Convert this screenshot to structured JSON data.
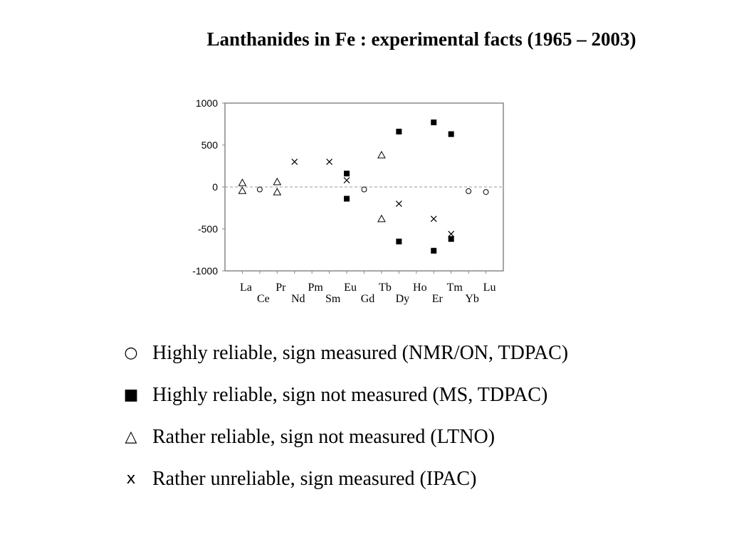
{
  "title": "Lanthanides in Fe : experimental facts (1965 – 2003)",
  "chart_data": {
    "type": "scatter",
    "title": "",
    "xlabel": "",
    "ylabel": "",
    "ylim": [
      -1000,
      1000
    ],
    "yticks": [
      1000,
      500,
      0,
      -500,
      -1000
    ],
    "categories": [
      "La",
      "Ce",
      "Pr",
      "Nd",
      "Pm",
      "Sm",
      "Eu",
      "Gd",
      "Tb",
      "Dy",
      "Ho",
      "Er",
      "Tm",
      "Yb",
      "Lu"
    ],
    "reference_line": 0,
    "series": [
      {
        "marker": "circle",
        "points": [
          {
            "x": "Ce",
            "y": -30
          },
          {
            "x": "Gd",
            "y": -30
          },
          {
            "x": "Yb",
            "y": -50
          },
          {
            "x": "Lu",
            "y": -60
          }
        ]
      },
      {
        "marker": "square",
        "points": [
          {
            "x": "Eu",
            "y": 160
          },
          {
            "x": "Eu",
            "y": -140
          },
          {
            "x": "Dy",
            "y": 660
          },
          {
            "x": "Dy",
            "y": -650
          },
          {
            "x": "Er",
            "y": 770
          },
          {
            "x": "Er",
            "y": -760
          },
          {
            "x": "Tm",
            "y": 630
          },
          {
            "x": "Tm",
            "y": -620
          }
        ]
      },
      {
        "marker": "triangle",
        "points": [
          {
            "x": "La",
            "y": 50
          },
          {
            "x": "La",
            "y": -45
          },
          {
            "x": "Pr",
            "y": 60
          },
          {
            "x": "Pr",
            "y": -60
          },
          {
            "x": "Tb",
            "y": 380
          },
          {
            "x": "Tb",
            "y": -380
          }
        ]
      },
      {
        "marker": "cross",
        "points": [
          {
            "x": "Nd",
            "y": 300
          },
          {
            "x": "Sm",
            "y": 300
          },
          {
            "x": "Eu",
            "y": 80
          },
          {
            "x": "Dy",
            "y": -200
          },
          {
            "x": "Er",
            "y": -380
          },
          {
            "x": "Tm",
            "y": -560
          }
        ]
      }
    ]
  },
  "legend": [
    {
      "symbol": "○",
      "label": "Highly reliable, sign measured (NMR/ON, TDPAC)"
    },
    {
      "symbol": "■",
      "label": "Highly reliable, sign not measured (MS, TDPAC)"
    },
    {
      "symbol": "△",
      "label": "Rather reliable, sign not measured (LTNO)"
    },
    {
      "symbol": "x",
      "label": "Rather unreliable, sign measured (IPAC)"
    }
  ]
}
